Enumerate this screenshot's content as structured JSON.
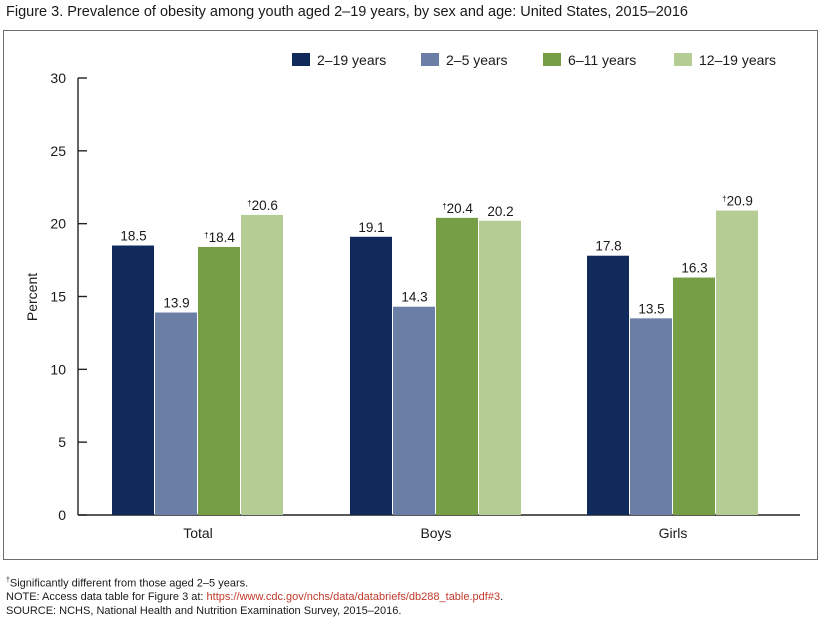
{
  "figure_title": "Figure 3. Prevalence of obesity among youth aged 2–19 years, by sex and age: United States, 2015–2016",
  "notes": {
    "dagger": "†",
    "footnote": "Significantly different from those aged 2–5 years.",
    "note_prefix": "NOTE: Access data table for Figure 3 at: ",
    "note_link": "https://www.cdc.gov/nchs/data/databriefs/db288_table.pdf#3",
    "note_suffix": ".",
    "source": "SOURCE: NCHS, National Health and Nutrition Examination Survey, 2015–2016."
  },
  "chart_data": {
    "type": "bar",
    "title": "",
    "xlabel": "",
    "ylabel": "Percent",
    "ylim": [
      0,
      30
    ],
    "yticks": [
      0,
      5,
      10,
      15,
      20,
      25,
      30
    ],
    "grid": false,
    "legend_position": "top-right",
    "categories": [
      "Total",
      "Boys",
      "Girls"
    ],
    "series": [
      {
        "name": "2–19 years",
        "color": "#112a5c",
        "values": [
          18.5,
          19.1,
          17.8
        ],
        "flagged": [
          false,
          false,
          false
        ]
      },
      {
        "name": "2–5 years",
        "color": "#6a7ea6",
        "values": [
          13.9,
          14.3,
          13.5
        ],
        "flagged": [
          false,
          false,
          false
        ]
      },
      {
        "name": "6–11 years",
        "color": "#759e45",
        "values": [
          18.4,
          20.4,
          16.3
        ],
        "flagged": [
          true,
          true,
          false
        ]
      },
      {
        "name": "12–19 years",
        "color": "#b5cc94",
        "values": [
          20.6,
          20.2,
          20.9
        ],
        "flagged": [
          true,
          false,
          true
        ]
      }
    ],
    "flag_symbol": "†"
  }
}
